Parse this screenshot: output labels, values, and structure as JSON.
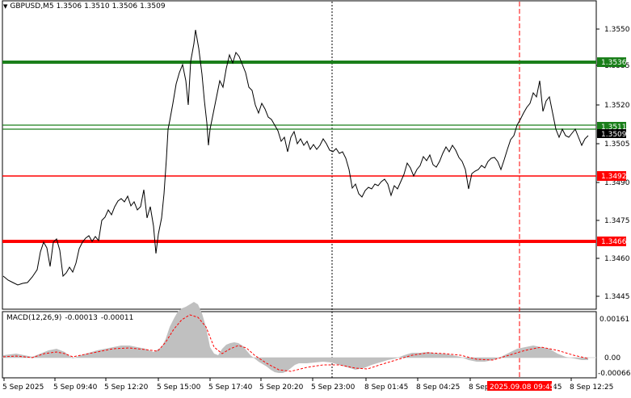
{
  "header": {
    "symbol": "GBPUSD,M5",
    "open": "1.3506",
    "high": "1.3510",
    "low": "1.3506",
    "close": "1.3509"
  },
  "macd": {
    "label": "MACD(12,26,9)",
    "main": "-0.00013",
    "signal": "-0.00011",
    "axis_labels": [
      "0.00161",
      "0.00",
      "-0.00066"
    ]
  },
  "price_axis": {
    "ticks": [
      "1.3550",
      "1.3535",
      "1.3520",
      "1.3505",
      "1.3490",
      "1.3475",
      "1.3460",
      "1.3445"
    ]
  },
  "levels": [
    {
      "name": "resistance-high",
      "label": "1.3536",
      "color": "#1a7f1a"
    },
    {
      "name": "resistance-low",
      "label": "1.3511",
      "color": "#1a7f1a"
    },
    {
      "name": "current-bid",
      "label": "1.3509",
      "color": "#000000"
    },
    {
      "name": "support-high",
      "label": "1.3492",
      "color": "#ff0000"
    },
    {
      "name": "support-low",
      "label": "1.3466",
      "color": "#ff0000"
    }
  ],
  "time_axis": {
    "labels": [
      "5 Sep 2025",
      "5 Sep 09:40",
      "5 Sep 12:20",
      "5 Sep 15:00",
      "5 Sep 17:40",
      "5 Sep 20:20",
      "5 Sep 23:00",
      "8 Sep 01:45",
      "8 Sep 04:25",
      "8 Sep",
      "45",
      "8 Sep 12:25"
    ],
    "highlight": "2025.09.08 09:45"
  },
  "colors": {
    "green_level": "#1a7f1a",
    "red_level": "#ff0000",
    "histogram": "#c0c0c0",
    "signal_line": "#ff0000",
    "price_line": "#000000"
  }
}
